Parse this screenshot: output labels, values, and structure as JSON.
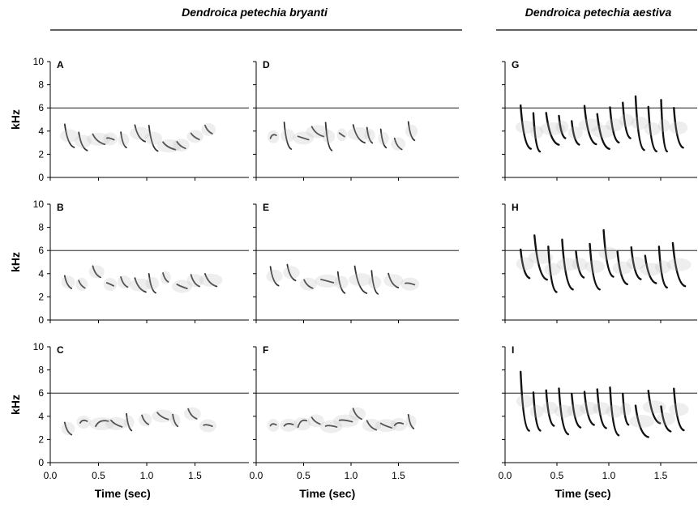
{
  "groups": [
    {
      "title": "Dendroica petechia bryanti"
    },
    {
      "title": "Dendroica petechia aestiva"
    }
  ],
  "panels": [
    {
      "label": "A"
    },
    {
      "label": "B"
    },
    {
      "label": "C"
    },
    {
      "label": "D"
    },
    {
      "label": "E"
    },
    {
      "label": "F"
    },
    {
      "label": "G"
    },
    {
      "label": "H"
    },
    {
      "label": "I"
    }
  ],
  "y_axis": {
    "label": "kHz",
    "ticks": [
      "0",
      "2",
      "4",
      "6",
      "8",
      "10"
    ]
  },
  "x_axis": {
    "label": "Time (sec)",
    "ticks": [
      "0.0",
      "0.5",
      "1.0",
      "1.5"
    ]
  }
}
